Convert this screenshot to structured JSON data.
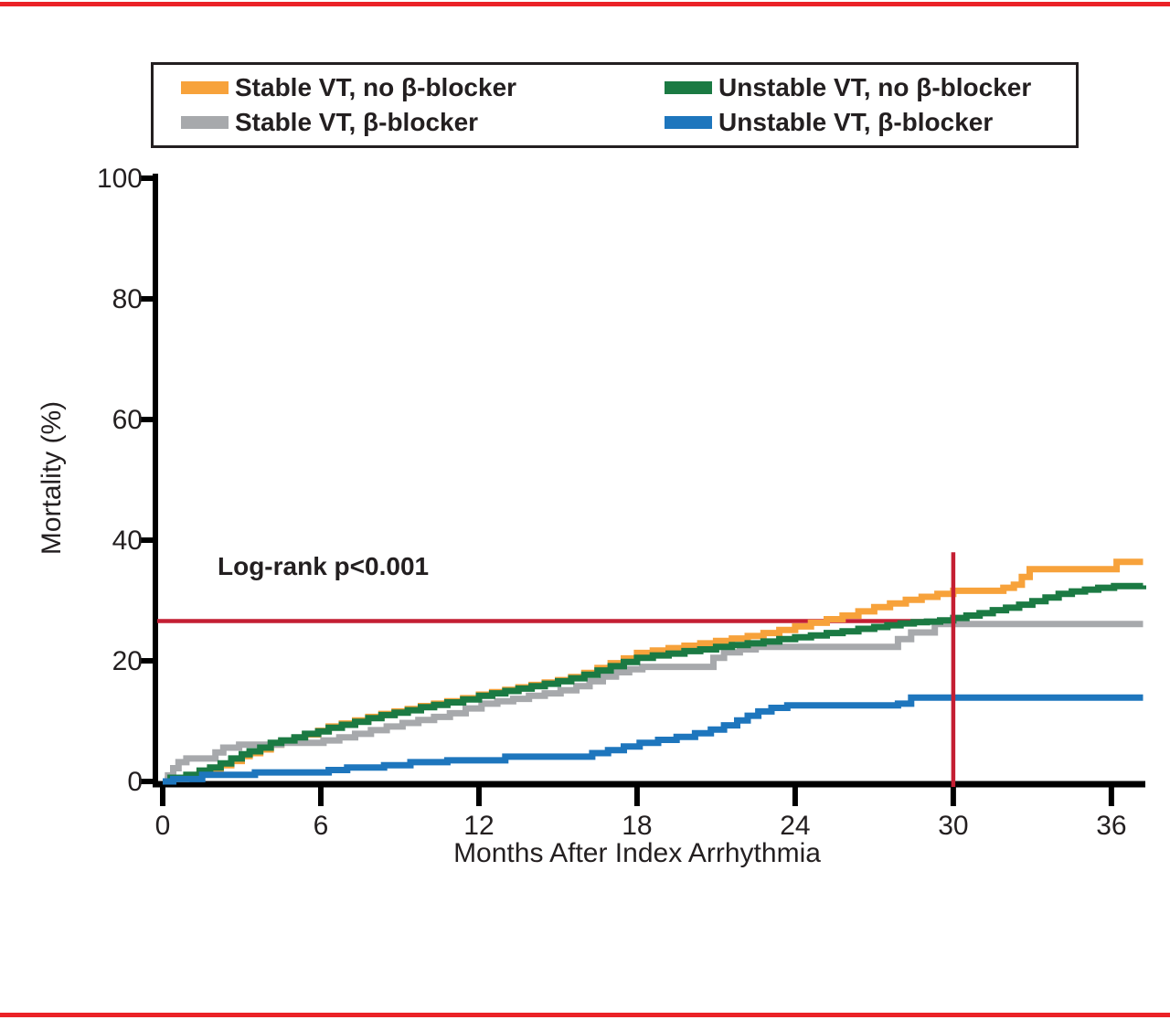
{
  "figure": {
    "top_bar_color": "#EB2227",
    "bottom_bar_color": "#EB2227",
    "background": "#FFFFFF",
    "text_color": "#231F20",
    "axis_color": "#000000"
  },
  "legend": {
    "items": [
      {
        "label": "Stable VT, no β-blocker",
        "color": "#F7A23B",
        "series": "stable_vt_no_bblocker"
      },
      {
        "label": "Unstable VT, no β-blocker",
        "color": "#1B7A43",
        "series": "unstable_vt_no_bblocker"
      },
      {
        "label": "Stable VT, β-blocker",
        "color": "#A7A9AC",
        "series": "stable_vt_bblocker"
      },
      {
        "label": "Unstable VT, β-blocker",
        "color": "#1E76BD",
        "series": "unstable_vt_bblocker"
      }
    ]
  },
  "chart_data": {
    "type": "line",
    "subtype": "kaplan_meier_step",
    "title": "",
    "xlabel": "Months After Index Arrhythmia",
    "ylabel": "Mortality (%)",
    "xlim": [
      0,
      37.3
    ],
    "ylim": [
      0,
      100
    ],
    "x_ticks": [
      0,
      6,
      12,
      18,
      24,
      30,
      36
    ],
    "y_ticks": [
      0,
      20,
      40,
      60,
      80,
      100
    ],
    "grid": false,
    "legend_position": "top-center-box",
    "annotations": {
      "log_rank_text": "Log-rank p<0.001",
      "reference_lines": {
        "horizontal": {
          "y": 26.6,
          "x_start": 0,
          "x_end": 30,
          "color": "#C41F33"
        },
        "vertical": {
          "x": 30,
          "y_start": 0,
          "y_end": 38,
          "color": "#C41F33"
        }
      }
    },
    "series": [
      {
        "id": "stable_vt_no_bblocker",
        "name": "Stable VT, no β-blocker",
        "color": "#F7A23B",
        "points": [
          [
            0,
            0
          ],
          [
            0.2,
            0.4
          ],
          [
            0.9,
            0.8
          ],
          [
            1.4,
            1.5
          ],
          [
            1.8,
            2.0
          ],
          [
            2.2,
            2.7
          ],
          [
            2.6,
            3.4
          ],
          [
            3.0,
            4.2
          ],
          [
            3.3,
            4.7
          ],
          [
            3.7,
            5.3
          ],
          [
            4.1,
            6.1
          ],
          [
            4.5,
            6.6
          ],
          [
            5.0,
            7.2
          ],
          [
            5.4,
            7.8
          ],
          [
            5.9,
            8.4
          ],
          [
            6.3,
            9.1
          ],
          [
            6.8,
            9.6
          ],
          [
            7.3,
            10.1
          ],
          [
            7.8,
            10.7
          ],
          [
            8.3,
            11.2
          ],
          [
            8.8,
            11.6
          ],
          [
            9.3,
            12.0
          ],
          [
            9.8,
            12.5
          ],
          [
            10.3,
            12.9
          ],
          [
            10.8,
            13.3
          ],
          [
            11.4,
            13.8
          ],
          [
            12.0,
            14.4
          ],
          [
            12.5,
            14.8
          ],
          [
            13.0,
            15.2
          ],
          [
            13.5,
            15.6
          ],
          [
            14.0,
            16.0
          ],
          [
            14.5,
            16.4
          ],
          [
            15.0,
            16.8
          ],
          [
            15.5,
            17.3
          ],
          [
            16.0,
            18.0
          ],
          [
            16.5,
            18.8
          ],
          [
            17.0,
            19.6
          ],
          [
            17.5,
            20.4
          ],
          [
            18.0,
            21.3
          ],
          [
            18.6,
            21.7
          ],
          [
            19.2,
            22.1
          ],
          [
            19.8,
            22.5
          ],
          [
            20.4,
            22.9
          ],
          [
            21.0,
            23.3
          ],
          [
            21.6,
            23.7
          ],
          [
            22.2,
            24.1
          ],
          [
            22.8,
            24.6
          ],
          [
            23.4,
            25.1
          ],
          [
            24.0,
            25.7
          ],
          [
            24.6,
            26.3
          ],
          [
            25.2,
            26.9
          ],
          [
            25.8,
            27.5
          ],
          [
            26.4,
            28.2
          ],
          [
            27.0,
            28.9
          ],
          [
            27.6,
            29.5
          ],
          [
            28.2,
            30.1
          ],
          [
            28.8,
            30.6
          ],
          [
            29.4,
            31.1
          ],
          [
            30.0,
            31.6
          ],
          [
            31.9,
            32.1
          ],
          [
            32.3,
            32.6
          ],
          [
            32.6,
            33.9
          ],
          [
            32.9,
            35.2
          ],
          [
            36.2,
            36.4
          ],
          [
            37.2,
            36.4
          ]
        ]
      },
      {
        "id": "stable_vt_bblocker",
        "name": "Stable VT, β-blocker",
        "color": "#A7A9AC",
        "points": [
          [
            0,
            0
          ],
          [
            0.2,
            1.0
          ],
          [
            0.4,
            2.2
          ],
          [
            0.6,
            3.2
          ],
          [
            0.9,
            3.8
          ],
          [
            2.0,
            4.8
          ],
          [
            2.3,
            5.6
          ],
          [
            2.9,
            6.1
          ],
          [
            4.5,
            6.4
          ],
          [
            6.1,
            6.8
          ],
          [
            6.7,
            7.3
          ],
          [
            7.3,
            7.9
          ],
          [
            7.9,
            8.5
          ],
          [
            8.5,
            9.1
          ],
          [
            9.1,
            9.7
          ],
          [
            9.7,
            10.2
          ],
          [
            10.3,
            10.7
          ],
          [
            10.9,
            11.3
          ],
          [
            11.5,
            12.1
          ],
          [
            12.1,
            12.9
          ],
          [
            12.7,
            13.3
          ],
          [
            13.3,
            13.7
          ],
          [
            13.9,
            14.2
          ],
          [
            14.5,
            14.6
          ],
          [
            15.1,
            15.1
          ],
          [
            15.7,
            15.8
          ],
          [
            16.2,
            16.6
          ],
          [
            16.7,
            17.4
          ],
          [
            17.2,
            18.1
          ],
          [
            17.7,
            18.6
          ],
          [
            18.2,
            19.0
          ],
          [
            20.9,
            20.5
          ],
          [
            21.3,
            21.4
          ],
          [
            21.9,
            21.9
          ],
          [
            22.5,
            22.3
          ],
          [
            27.9,
            23.6
          ],
          [
            28.4,
            24.7
          ],
          [
            29.3,
            26.1
          ],
          [
            37.2,
            26.1
          ]
        ]
      },
      {
        "id": "unstable_vt_no_bblocker",
        "name": "Unstable VT, no β-blocker",
        "color": "#1B7A43",
        "points": [
          [
            0,
            0
          ],
          [
            0.3,
            0.6
          ],
          [
            0.9,
            1.1
          ],
          [
            1.4,
            1.8
          ],
          [
            1.8,
            2.3
          ],
          [
            2.2,
            3.0
          ],
          [
            2.6,
            3.8
          ],
          [
            3.0,
            4.5
          ],
          [
            3.3,
            5.0
          ],
          [
            3.7,
            5.6
          ],
          [
            4.1,
            6.4
          ],
          [
            4.5,
            6.8
          ],
          [
            5.0,
            7.3
          ],
          [
            5.4,
            7.9
          ],
          [
            5.9,
            8.3
          ],
          [
            6.3,
            8.9
          ],
          [
            6.8,
            9.4
          ],
          [
            7.3,
            9.9
          ],
          [
            7.8,
            10.5
          ],
          [
            8.3,
            11.0
          ],
          [
            8.8,
            11.4
          ],
          [
            9.3,
            11.8
          ],
          [
            9.8,
            12.3
          ],
          [
            10.3,
            12.7
          ],
          [
            10.8,
            13.1
          ],
          [
            11.4,
            13.6
          ],
          [
            12.0,
            14.2
          ],
          [
            12.5,
            14.6
          ],
          [
            13.0,
            15.0
          ],
          [
            13.5,
            15.4
          ],
          [
            14.0,
            15.8
          ],
          [
            14.5,
            16.2
          ],
          [
            15.0,
            16.6
          ],
          [
            15.5,
            17.1
          ],
          [
            16.0,
            17.7
          ],
          [
            16.5,
            18.4
          ],
          [
            17.0,
            19.1
          ],
          [
            17.5,
            19.8
          ],
          [
            18.0,
            20.5
          ],
          [
            18.6,
            20.9
          ],
          [
            19.2,
            21.2
          ],
          [
            19.8,
            21.6
          ],
          [
            20.4,
            21.9
          ],
          [
            21.0,
            22.3
          ],
          [
            21.6,
            22.6
          ],
          [
            22.2,
            22.9
          ],
          [
            22.8,
            23.2
          ],
          [
            23.4,
            23.6
          ],
          [
            24.0,
            23.9
          ],
          [
            24.6,
            24.2
          ],
          [
            25.2,
            24.6
          ],
          [
            25.8,
            24.9
          ],
          [
            26.4,
            25.3
          ],
          [
            27.0,
            25.6
          ],
          [
            27.5,
            25.9
          ],
          [
            28.0,
            26.2
          ],
          [
            28.5,
            26.4
          ],
          [
            29.0,
            26.5
          ],
          [
            29.5,
            26.7
          ],
          [
            30.0,
            27.1
          ],
          [
            30.5,
            27.5
          ],
          [
            31.0,
            27.9
          ],
          [
            31.5,
            28.4
          ],
          [
            32.0,
            28.8
          ],
          [
            32.5,
            29.3
          ],
          [
            33.0,
            29.9
          ],
          [
            33.5,
            30.5
          ],
          [
            34.0,
            31.1
          ],
          [
            34.5,
            31.5
          ],
          [
            35.0,
            31.8
          ],
          [
            35.5,
            32.1
          ],
          [
            36.1,
            32.4
          ],
          [
            37.2,
            32.5
          ]
        ]
      },
      {
        "id": "unstable_vt_bblocker",
        "name": "Unstable VT, β-blocker",
        "color": "#1E76BD",
        "points": [
          [
            0,
            0
          ],
          [
            0.4,
            0.4
          ],
          [
            1.5,
            1.1
          ],
          [
            3.5,
            1.5
          ],
          [
            6.3,
            1.9
          ],
          [
            7.0,
            2.3
          ],
          [
            8.4,
            2.7
          ],
          [
            9.4,
            3.2
          ],
          [
            10.8,
            3.5
          ],
          [
            13.0,
            4.1
          ],
          [
            16.3,
            4.7
          ],
          [
            16.9,
            5.2
          ],
          [
            17.5,
            5.8
          ],
          [
            18.1,
            6.4
          ],
          [
            18.8,
            6.9
          ],
          [
            19.5,
            7.4
          ],
          [
            20.2,
            8.0
          ],
          [
            20.8,
            8.6
          ],
          [
            21.3,
            9.3
          ],
          [
            21.8,
            10.1
          ],
          [
            22.2,
            10.9
          ],
          [
            22.6,
            11.6
          ],
          [
            23.1,
            12.2
          ],
          [
            23.7,
            12.6
          ],
          [
            27.9,
            12.9
          ],
          [
            28.4,
            13.9
          ],
          [
            37.2,
            13.9
          ]
        ]
      }
    ]
  }
}
